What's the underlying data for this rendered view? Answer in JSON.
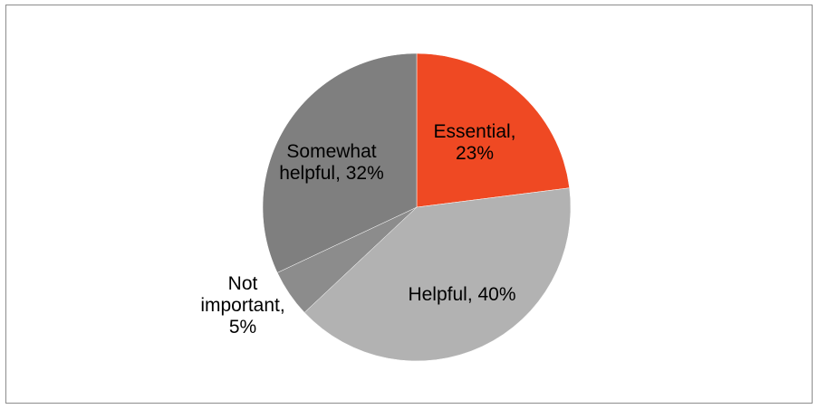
{
  "chart_data": {
    "type": "pie",
    "title": "",
    "categories": [
      "Essential",
      "Helpful",
      "Not important",
      "Somewhat helpful"
    ],
    "values": [
      23,
      40,
      5,
      32
    ],
    "unit": "%",
    "labels": [
      {
        "lines": [
          "Essential,",
          "23%"
        ]
      },
      {
        "lines": [
          "Helpful, 40%"
        ]
      },
      {
        "lines": [
          "Not",
          "important,",
          "5%"
        ]
      },
      {
        "lines": [
          "Somewhat",
          "helpful, 32%"
        ]
      }
    ],
    "colors": [
      "#ef4923",
      "#b2b2b2",
      "#8c8c8c",
      "#7f7f7f"
    ],
    "start_angle_deg": 0,
    "direction": "clockwise",
    "legend": "none"
  }
}
